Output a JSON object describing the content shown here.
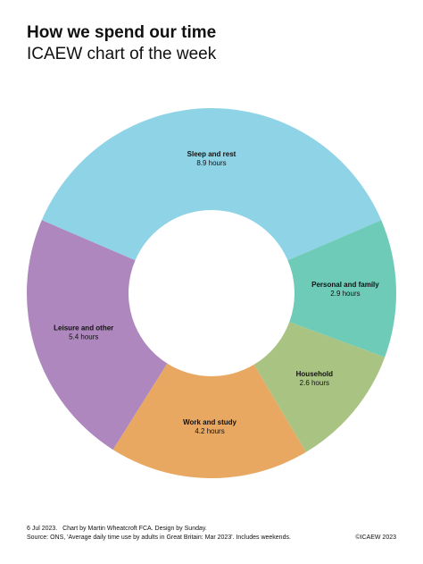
{
  "chart_data": {
    "type": "donut",
    "title": "How we spend our time",
    "subtitle": "ICAEW chart of the week",
    "categories": [
      "Sleep and rest",
      "Personal and family",
      "Household",
      "Work and study",
      "Leisure and other"
    ],
    "values": [
      8.9,
      2.9,
      2.6,
      4.2,
      5.4
    ],
    "value_labels": [
      "8.9 hours",
      "2.9 hours",
      "2.6 hours",
      "4.2 hours",
      "5.4 hours"
    ],
    "colors": [
      "#8fd3e6",
      "#6ecbb8",
      "#a9c482",
      "#e8a862",
      "#ad87bd"
    ],
    "footnote": "6 Jul 2023.   Chart by Martin Wheatcroft FCA. Design by Sunday.",
    "source": "Source: ONS, 'Average daily time use by adults in Great Britain: Mar 2023'. Includes weekends.",
    "copyright": "©ICAEW 2023"
  }
}
